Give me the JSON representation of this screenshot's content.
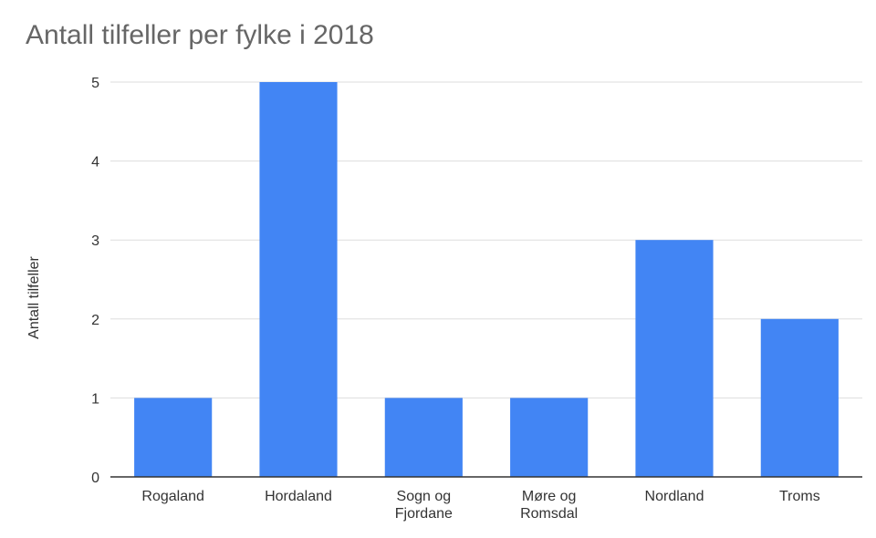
{
  "chart_data": {
    "type": "bar",
    "title": "Antall tilfeller per fylke i 2018",
    "xlabel": "",
    "ylabel": "Antall tilfeller",
    "categories": [
      [
        "Rogaland"
      ],
      [
        "Hordaland"
      ],
      [
        "Sogn og",
        "Fjordane"
      ],
      [
        "Møre og",
        "Romsdal"
      ],
      [
        "Nordland"
      ],
      [
        "Troms"
      ]
    ],
    "values": [
      1,
      5,
      1,
      1,
      3,
      2
    ],
    "ylim": [
      0,
      5
    ],
    "yticks": [
      "0",
      "1",
      "2",
      "3",
      "4",
      "5"
    ],
    "grid": true,
    "colors": {
      "bar": "#4285f4",
      "grid": "#dddddd",
      "axis": "#333333"
    }
  }
}
